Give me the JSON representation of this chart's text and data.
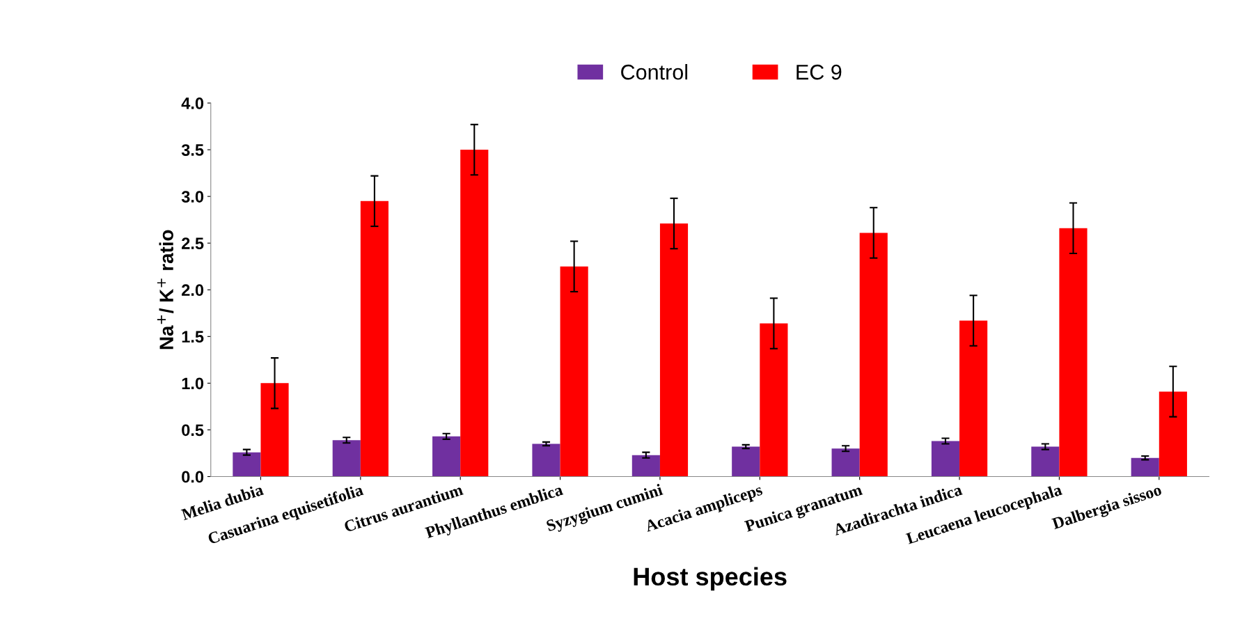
{
  "chart_data": {
    "type": "bar",
    "xlabel": "Host species",
    "ylabel": "Na$^{+}$/ K$^{+}$ ratio",
    "categories": [
      "Melia dubia",
      "Casuarina equisetifolia",
      "Citrus aurantium",
      "Phyllanthus emblica",
      "Syzygium cumini",
      "Acacia ampliceps",
      "Punica granatum",
      "Azadirachta indica",
      "Leucaena leucocephala",
      "Dalbergia sissoo"
    ],
    "series": [
      {
        "name": "Control",
        "color": "#7030a0",
        "values": [
          0.26,
          0.39,
          0.43,
          0.35,
          0.23,
          0.32,
          0.3,
          0.38,
          0.32,
          0.2
        ],
        "errors": [
          0.03,
          0.03,
          0.03,
          0.02,
          0.03,
          0.02,
          0.03,
          0.03,
          0.03,
          0.02
        ]
      },
      {
        "name": "EC 9",
        "color": "#ff0000",
        "values": [
          1.0,
          2.95,
          3.5,
          2.25,
          2.71,
          1.64,
          2.61,
          1.67,
          2.66,
          0.91
        ],
        "errors": [
          0.27,
          0.27,
          0.27,
          0.27,
          0.27,
          0.27,
          0.27,
          0.27,
          0.27,
          0.27
        ]
      }
    ],
    "ylim": [
      0,
      4
    ],
    "yticks": [
      {
        "value": 0,
        "label": "0.0"
      },
      0.5,
      {
        "value": 1,
        "label": "1.0"
      },
      1.5,
      {
        "value": 2,
        "label": "2.0"
      },
      2.5,
      {
        "value": 3,
        "label": "3.0"
      },
      3.5,
      {
        "value": 4,
        "label": "4.0"
      }
    ],
    "grid": false,
    "legend": "top"
  }
}
